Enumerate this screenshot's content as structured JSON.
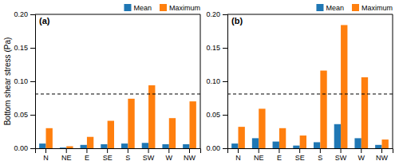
{
  "chart_data": [
    {
      "type": "bar",
      "title": "(a)",
      "ylabel": "Bottom shear stress (Pa)",
      "categories": [
        "N",
        "NE",
        "E",
        "SE",
        "S",
        "SW",
        "W",
        "NW"
      ],
      "series": [
        {
          "name": "Mean",
          "values": [
            0.007,
            0.001,
            0.005,
            0.006,
            0.007,
            0.008,
            0.006,
            0.006
          ]
        },
        {
          "name": "Maximum",
          "values": [
            0.03,
            0.003,
            0.017,
            0.041,
            0.074,
            0.094,
            0.045,
            0.07
          ]
        }
      ],
      "critical_shear": 0.081,
      "ylim": [
        0,
        0.2
      ],
      "yticks": [
        {
          "value": 0,
          "label": "0.00"
        },
        0.05,
        {
          "value": 0.1,
          "label": "0.10"
        },
        0.15,
        {
          "value": 0.2,
          "label": "0.20"
        }
      ],
      "grid": false,
      "legend": "top-right"
    },
    {
      "type": "bar",
      "title": "(b)",
      "categories": [
        "N",
        "NE",
        "E",
        "SE",
        "S",
        "SW",
        "W",
        "NW"
      ],
      "series": [
        {
          "name": "Mean",
          "values": [
            0.007,
            0.015,
            0.01,
            0.004,
            0.009,
            0.036,
            0.015,
            0.005
          ]
        },
        {
          "name": "Maximum",
          "values": [
            0.032,
            0.059,
            0.03,
            0.019,
            0.116,
            0.184,
            0.106,
            0.013
          ]
        }
      ],
      "critical_shear": 0.081,
      "ylim": [
        0,
        0.2
      ],
      "yticks": [
        {
          "value": 0,
          "label": "0.00"
        },
        0.05,
        {
          "value": 0.1,
          "label": "0.10"
        },
        0.15,
        {
          "value": 0.2,
          "label": "0.20"
        }
      ],
      "grid": false,
      "legend": "top-right"
    }
  ]
}
